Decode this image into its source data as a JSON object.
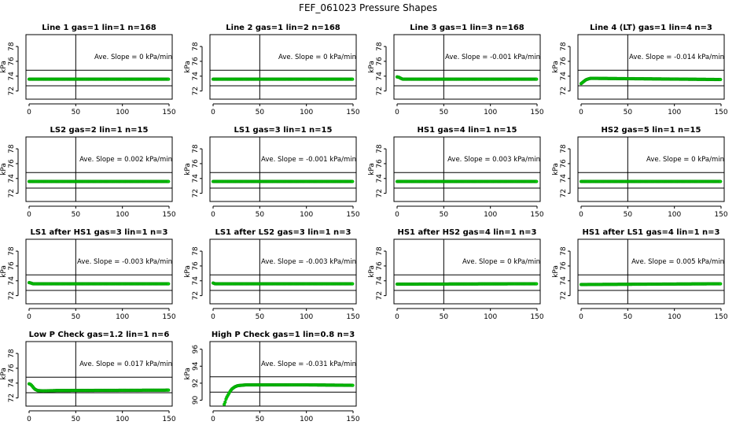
{
  "page_title": "FEF_061023  Pressure Shapes",
  "chart_data": [
    {
      "type": "scatter",
      "title": "Line 1 gas=1 lin=1 n=168",
      "ylabel": "kPa",
      "xlim": [
        0,
        150
      ],
      "ylim": [
        70.9,
        79.6
      ],
      "yticks": [
        72,
        74,
        76,
        78
      ],
      "xticks": [
        0,
        50,
        100,
        150
      ],
      "hlines": [
        72.7,
        74.8
      ],
      "vline": 50,
      "slope_text": "Ave. Slope =  0 kPa/min",
      "x": [
        0,
        150
      ],
      "y": [
        73.6,
        73.6
      ]
    },
    {
      "type": "scatter",
      "title": "Line 2 gas=1 lin=2 n=168",
      "ylabel": "kPa",
      "xlim": [
        0,
        150
      ],
      "ylim": [
        70.9,
        79.6
      ],
      "yticks": [
        72,
        74,
        76,
        78
      ],
      "xticks": [
        0,
        50,
        100,
        150
      ],
      "hlines": [
        72.7,
        74.8
      ],
      "vline": 50,
      "slope_text": "Ave. Slope =  0 kPa/min",
      "x": [
        0,
        150
      ],
      "y": [
        73.6,
        73.6
      ]
    },
    {
      "type": "scatter",
      "title": "Line 3 gas=1 lin=3 n=168",
      "ylabel": "kPa",
      "xlim": [
        0,
        150
      ],
      "ylim": [
        70.9,
        79.6
      ],
      "yticks": [
        72,
        74,
        76,
        78
      ],
      "xticks": [
        0,
        50,
        100,
        150
      ],
      "hlines": [
        72.7,
        74.8
      ],
      "vline": 50,
      "slope_text": "Ave. Slope =  -0.001  kPa/min",
      "x": [
        0,
        2,
        4,
        6,
        150
      ],
      "y": [
        73.9,
        73.85,
        73.7,
        73.6,
        73.6
      ]
    },
    {
      "type": "scatter",
      "title": "Line 4 (LT) gas=1 lin=4 n=3",
      "ylabel": "kPa",
      "xlim": [
        0,
        150
      ],
      "ylim": [
        70.9,
        79.6
      ],
      "yticks": [
        72,
        74,
        76,
        78
      ],
      "xticks": [
        0,
        50,
        100,
        150
      ],
      "hlines": [
        72.7,
        74.8
      ],
      "vline": 50,
      "slope_text": "Ave. Slope =  -0.014  kPa/min",
      "x": [
        0,
        1,
        3,
        5,
        7,
        10,
        15,
        150
      ],
      "y": [
        73.0,
        73.1,
        73.3,
        73.5,
        73.6,
        73.7,
        73.7,
        73.55
      ]
    },
    {
      "type": "scatter",
      "title": "LS2 gas=2 lin=1 n=15",
      "ylabel": "kPa",
      "xlim": [
        0,
        150
      ],
      "ylim": [
        70.9,
        79.6
      ],
      "yticks": [
        72,
        74,
        76,
        78
      ],
      "xticks": [
        0,
        50,
        100,
        150
      ],
      "hlines": [
        72.7,
        74.8
      ],
      "vline": 50,
      "slope_text": "Ave. Slope =  0.002  kPa/min",
      "x": [
        0,
        150
      ],
      "y": [
        73.6,
        73.6
      ]
    },
    {
      "type": "scatter",
      "title": "LS1 gas=3 lin=1 n=15",
      "ylabel": "kPa",
      "xlim": [
        0,
        150
      ],
      "ylim": [
        70.9,
        79.6
      ],
      "yticks": [
        72,
        74,
        76,
        78
      ],
      "xticks": [
        0,
        50,
        100,
        150
      ],
      "hlines": [
        72.7,
        74.8
      ],
      "vline": 50,
      "slope_text": "Ave. Slope =  -0.001  kPa/min",
      "x": [
        0,
        150
      ],
      "y": [
        73.6,
        73.6
      ]
    },
    {
      "type": "scatter",
      "title": "HS1 gas=4 lin=1 n=15",
      "ylabel": "kPa",
      "xlim": [
        0,
        150
      ],
      "ylim": [
        70.9,
        79.6
      ],
      "yticks": [
        72,
        74,
        76,
        78
      ],
      "xticks": [
        0,
        50,
        100,
        150
      ],
      "hlines": [
        72.7,
        74.8
      ],
      "vline": 50,
      "slope_text": "Ave. Slope =  0.003  kPa/min",
      "x": [
        0,
        150
      ],
      "y": [
        73.6,
        73.6
      ]
    },
    {
      "type": "scatter",
      "title": "HS2 gas=5 lin=1 n=15",
      "ylabel": "kPa",
      "xlim": [
        0,
        150
      ],
      "ylim": [
        70.9,
        79.6
      ],
      "yticks": [
        72,
        74,
        76,
        78
      ],
      "xticks": [
        0,
        50,
        100,
        150
      ],
      "hlines": [
        72.7,
        74.8
      ],
      "vline": 50,
      "slope_text": "Ave. Slope =  0 kPa/min",
      "x": [
        0,
        150
      ],
      "y": [
        73.6,
        73.6
      ]
    },
    {
      "type": "scatter",
      "title": "LS1 after HS1 gas=3 lin=1 n=3",
      "ylabel": "kPa",
      "xlim": [
        0,
        150
      ],
      "ylim": [
        70.9,
        79.6
      ],
      "yticks": [
        72,
        74,
        76,
        78
      ],
      "xticks": [
        0,
        50,
        100,
        150
      ],
      "hlines": [
        72.7,
        74.8
      ],
      "vline": 50,
      "slope_text": "Ave. Slope =  -0.003  kPa/min",
      "x": [
        0,
        2,
        4,
        150
      ],
      "y": [
        73.75,
        73.7,
        73.6,
        73.6
      ]
    },
    {
      "type": "scatter",
      "title": "LS1 after LS2 gas=3 lin=1 n=3",
      "ylabel": "kPa",
      "xlim": [
        0,
        150
      ],
      "ylim": [
        70.9,
        79.6
      ],
      "yticks": [
        72,
        74,
        76,
        78
      ],
      "xticks": [
        0,
        50,
        100,
        150
      ],
      "hlines": [
        72.7,
        74.8
      ],
      "vline": 50,
      "slope_text": "Ave. Slope =  -0.003  kPa/min",
      "x": [
        0,
        2,
        150
      ],
      "y": [
        73.7,
        73.6,
        73.6
      ]
    },
    {
      "type": "scatter",
      "title": "HS1 after HS2 gas=4 lin=1 n=3",
      "ylabel": "kPa",
      "xlim": [
        0,
        150
      ],
      "ylim": [
        70.9,
        79.6
      ],
      "yticks": [
        72,
        74,
        76,
        78
      ],
      "xticks": [
        0,
        50,
        100,
        150
      ],
      "hlines": [
        72.7,
        74.8
      ],
      "vline": 50,
      "slope_text": "Ave. Slope =  0 kPa/min",
      "x": [
        0,
        150
      ],
      "y": [
        73.55,
        73.6
      ]
    },
    {
      "type": "scatter",
      "title": "HS1 after LS1 gas=4 lin=1 n=3",
      "ylabel": "kPa",
      "xlim": [
        0,
        150
      ],
      "ylim": [
        70.9,
        79.6
      ],
      "yticks": [
        72,
        74,
        76,
        78
      ],
      "xticks": [
        0,
        50,
        100,
        150
      ],
      "hlines": [
        72.7,
        74.8
      ],
      "vline": 50,
      "slope_text": "Ave. Slope =  0.005  kPa/min",
      "x": [
        0,
        150
      ],
      "y": [
        73.5,
        73.6
      ]
    },
    {
      "type": "scatter",
      "title": "Low P Check gas=1.2 lin=1 n=6",
      "ylabel": "kPa",
      "xlim": [
        0,
        150
      ],
      "ylim": [
        70.9,
        79.6
      ],
      "yticks": [
        72,
        74,
        76,
        78
      ],
      "xticks": [
        0,
        50,
        100,
        150
      ],
      "hlines": [
        72.7,
        74.8
      ],
      "vline": 50,
      "slope_text": "Ave. Slope =  0.017  kPa/min",
      "x": [
        0,
        2,
        4,
        6,
        9,
        15,
        30,
        150
      ],
      "y": [
        73.9,
        73.8,
        73.5,
        73.2,
        73.0,
        72.95,
        73.0,
        73.05
      ]
    },
    {
      "type": "scatter",
      "title": "High P Check gas=1 lin=0.8 n=3",
      "ylabel": "kPa",
      "xlim": [
        0,
        150
      ],
      "ylim": [
        89.3,
        96.9
      ],
      "yticks": [
        90,
        92,
        94,
        96
      ],
      "xticks": [
        0,
        50,
        100,
        150
      ],
      "hlines": [
        90.95,
        92.75
      ],
      "vline": 50,
      "slope_text": "Ave. Slope =  -0.031  kPa/min",
      "x": [
        12,
        13,
        14,
        16,
        18,
        20,
        23,
        26,
        30,
        35,
        40,
        50,
        100,
        150
      ],
      "y": [
        89.5,
        89.8,
        90.2,
        90.6,
        91.0,
        91.3,
        91.55,
        91.7,
        91.75,
        91.8,
        91.8,
        91.8,
        91.8,
        91.75
      ]
    }
  ]
}
